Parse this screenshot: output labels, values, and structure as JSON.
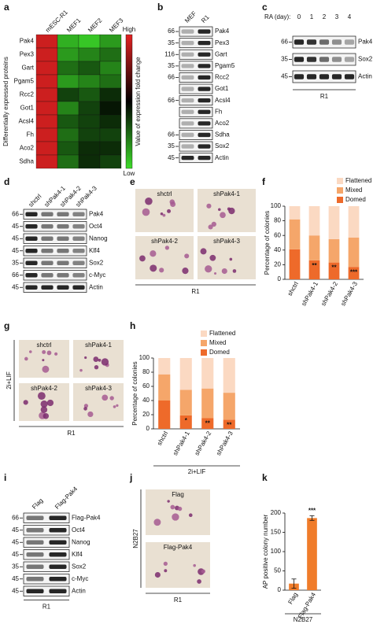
{
  "chart_data": [
    {
      "type": "heatmap",
      "letter": "a",
      "x_categories": [
        "mESC-R1",
        "MEF1",
        "MEF2",
        "MEF3"
      ],
      "y_categories": [
        "Pak4",
        "Pex3",
        "Gart",
        "Pgam5",
        "Rcc2",
        "Got1",
        "Acsl4",
        "Fh",
        "Aco2",
        "Sdha"
      ],
      "values": [
        [
          0.9,
          -0.8,
          -0.9,
          -0.7
        ],
        [
          0.9,
          -0.7,
          -0.6,
          -0.5
        ],
        [
          0.9,
          -0.5,
          -0.4,
          -0.6
        ],
        [
          0.9,
          -0.7,
          -0.6,
          -0.5
        ],
        [
          0.9,
          -0.3,
          -0.4,
          -0.2
        ],
        [
          0.9,
          -0.6,
          -0.3,
          -0.1
        ],
        [
          0.9,
          -0.4,
          -0.3,
          -0.2
        ],
        [
          0.9,
          -0.5,
          -0.3,
          -0.3
        ],
        [
          0.9,
          -0.4,
          -0.2,
          -0.2
        ],
        [
          0.9,
          -0.5,
          -0.2,
          -0.3
        ]
      ],
      "zlim": [
        -1,
        1
      ],
      "colors": {
        "high": "#e32222",
        "mid": "#000000",
        "low": "#3ddc2a"
      },
      "y_label": "Differentially expressed proteins",
      "colorbar_label": "Value of expression fold change",
      "colorbar_high": "High",
      "colorbar_low": "Low"
    },
    {
      "type": "stacked_bar",
      "letter": "f",
      "categories": [
        "shctrl",
        "shPak4-1",
        "shPak4-2",
        "shPak4-3"
      ],
      "series": [
        {
          "name": "Domed",
          "color": "#ee6a2a",
          "values": [
            41,
            26,
            23,
            17
          ]
        },
        {
          "name": "Mixed",
          "color": "#f5a66a",
          "values": [
            41,
            34,
            32,
            40
          ]
        },
        {
          "name": "Flattened",
          "color": "#fbd9c2",
          "values": [
            18,
            40,
            45,
            43
          ]
        }
      ],
      "annotations": [
        null,
        "**",
        "**",
        "***"
      ],
      "ylim": [
        0,
        100
      ],
      "yticks": [
        0,
        20,
        40,
        60,
        80,
        100
      ],
      "y_label": "Percentage of colonies"
    },
    {
      "type": "stacked_bar",
      "letter": "h",
      "categories": [
        "shctrl",
        "shPak4-1",
        "shPak4-2",
        "shPak4-3"
      ],
      "series": [
        {
          "name": "Domed",
          "color": "#ee6a2a",
          "values": [
            40,
            19,
            15,
            13
          ]
        },
        {
          "name": "Mixed",
          "color": "#f5a66a",
          "values": [
            37,
            36,
            42,
            38
          ]
        },
        {
          "name": "Flattened",
          "color": "#fbd9c2",
          "values": [
            23,
            45,
            43,
            49
          ]
        }
      ],
      "annotations": [
        null,
        "*",
        "**",
        "**"
      ],
      "ylim": [
        0,
        100
      ],
      "yticks": [
        0,
        20,
        40,
        60,
        80,
        100
      ],
      "y_label": "Percentage of colonies",
      "x_label": "2i+LIF"
    },
    {
      "type": "bar",
      "letter": "k",
      "categories": [
        "Flag",
        "Flag-Pak4"
      ],
      "values": [
        17,
        187
      ],
      "errors": [
        12,
        6
      ],
      "color": "#f07c2a",
      "annotations": [
        null,
        "***"
      ],
      "ylim": [
        0,
        200
      ],
      "yticks": [
        0,
        50,
        100,
        150,
        200
      ],
      "y_label": "AP positive colony number",
      "x_label": "N2B27"
    }
  ],
  "blots": [
    {
      "letter": "b",
      "lanes": [
        "MEF",
        "R1"
      ],
      "rows": [
        {
          "mw": "66",
          "protein": "Pak4"
        },
        {
          "mw": "35",
          "protein": "Pex3"
        },
        {
          "mw": "116",
          "protein": "Gart"
        },
        {
          "mw": "35",
          "protein": "Pgam5"
        },
        {
          "mw": "66",
          "protein": "Rcc2"
        },
        {
          "protein": "Got1"
        },
        {
          "mw": "66",
          "protein": "Acsl4"
        },
        {
          "protein": "Fh"
        },
        {
          "protein": "Aco2"
        },
        {
          "mw": "66",
          "protein": "Sdha"
        },
        {
          "mw": "35",
          "protein": "Sox2"
        },
        {
          "mw": "45",
          "protein": "Actin"
        }
      ]
    },
    {
      "letter": "c",
      "header": "RA (day):",
      "lanes": [
        "0",
        "1",
        "2",
        "3",
        "4"
      ],
      "rows": [
        {
          "mw": "66",
          "protein": "Pak4"
        },
        {
          "mw": "35",
          "protein": "Sox2"
        },
        {
          "mw": "45",
          "protein": "Actin"
        }
      ],
      "footer": "R1"
    },
    {
      "letter": "d",
      "lanes": [
        "shctrl",
        "shPak4-1",
        "shPak4-2",
        "shPak4-3"
      ],
      "rows": [
        {
          "mw": "66",
          "protein": "Pak4"
        },
        {
          "mw": "45",
          "protein": "Oct4"
        },
        {
          "mw": "45",
          "protein": "Nanog"
        },
        {
          "mw": "45",
          "protein": "Klf4"
        },
        {
          "mw": "35",
          "protein": "Sox2"
        },
        {
          "mw": "66",
          "protein": "c-Myc"
        },
        {
          "mw": "45",
          "protein": "Actin"
        }
      ]
    },
    {
      "letter": "i",
      "lanes": [
        "Flag",
        "Flag-Pak4"
      ],
      "rows": [
        {
          "mw": "66",
          "protein": "Flag-Pak4"
        },
        {
          "mw": "45",
          "protein": "Oct4"
        },
        {
          "mw": "45",
          "protein": "Nanog"
        },
        {
          "mw": "45",
          "protein": "Klf4"
        },
        {
          "mw": "35",
          "protein": "Sox2"
        },
        {
          "mw": "45",
          "protein": "c-Myc"
        },
        {
          "mw": "45",
          "protein": "Actin"
        }
      ],
      "footer": "R1"
    }
  ],
  "images": [
    {
      "letter": "e",
      "panels": [
        "shctrl",
        "shPak4-1",
        "shPak4-2",
        "shPak4-3"
      ],
      "footer": "R1"
    },
    {
      "letter": "g",
      "panels": [
        "shctrl",
        "shPak4-1",
        "shPak4-2",
        "shPak4-3"
      ],
      "side_label": "2i+LIF",
      "footer": "R1"
    },
    {
      "letter": "j",
      "panels": [
        "Flag",
        "Flag-Pak4"
      ],
      "side_label": "N2B27",
      "footer": "R1"
    }
  ]
}
